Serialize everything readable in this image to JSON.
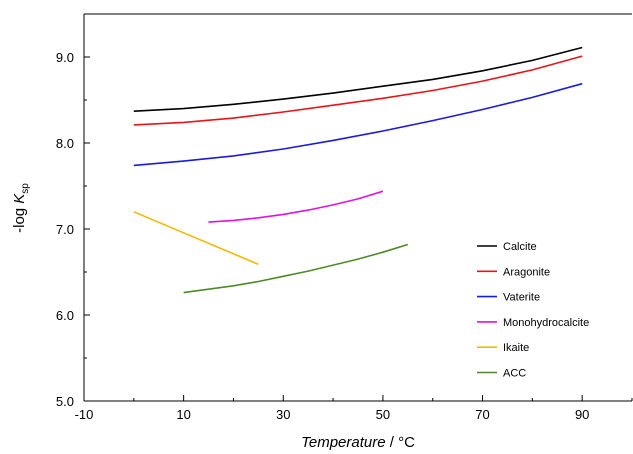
{
  "chart_data": {
    "type": "line",
    "xlabel": "Temperature / °C",
    "xlabel_parts": {
      "variable": "Temperature",
      "unit": " / °C"
    },
    "ylabel_parts": {
      "prefix": "-log ",
      "variable": "K",
      "subscript": "sp"
    },
    "xlim": [
      -10,
      100
    ],
    "ylim": [
      5.0,
      9.5
    ],
    "xticks": [
      -10,
      10,
      30,
      50,
      70,
      90
    ],
    "xtick_labels": [
      "-10",
      "10",
      "30",
      "50",
      "70",
      "90"
    ],
    "yticks": [
      5.0,
      6.0,
      7.0,
      8.0,
      9.0
    ],
    "ytick_labels": [
      "5.0",
      "6.0",
      "7.0",
      "8.0",
      "9.0"
    ],
    "grid": false,
    "legend_position": "lower-right",
    "series": [
      {
        "name": "Calcite",
        "color": "#000000",
        "x": [
          0,
          10,
          20,
          30,
          40,
          50,
          60,
          70,
          80,
          90
        ],
        "y": [
          8.37,
          8.4,
          8.45,
          8.51,
          8.58,
          8.66,
          8.74,
          8.84,
          8.96,
          9.11
        ]
      },
      {
        "name": "Aragonite",
        "color": "#e8141b",
        "x": [
          0,
          10,
          20,
          30,
          40,
          50,
          60,
          70,
          80,
          90
        ],
        "y": [
          8.21,
          8.24,
          8.29,
          8.36,
          8.44,
          8.52,
          8.61,
          8.72,
          8.85,
          9.01
        ]
      },
      {
        "name": "Vaterite",
        "color": "#1b1bdc",
        "x": [
          0,
          10,
          20,
          30,
          40,
          50,
          60,
          70,
          80,
          90
        ],
        "y": [
          7.74,
          7.79,
          7.85,
          7.93,
          8.03,
          8.14,
          8.26,
          8.39,
          8.53,
          8.69
        ]
      },
      {
        "name": "Monohydrocalcite",
        "color": "#e012e0",
        "x": [
          15,
          20,
          25,
          30,
          35,
          40,
          45,
          50
        ],
        "y": [
          7.08,
          7.1,
          7.13,
          7.17,
          7.22,
          7.28,
          7.35,
          7.44
        ]
      },
      {
        "name": "Ikaite",
        "color": "#f5b800",
        "x": [
          0,
          25
        ],
        "y": [
          7.2,
          6.59
        ]
      },
      {
        "name": "ACC",
        "color": "#4f8a2a",
        "x": [
          10,
          15,
          20,
          25,
          30,
          35,
          40,
          45,
          50,
          55
        ],
        "y": [
          6.26,
          6.3,
          6.34,
          6.39,
          6.45,
          6.51,
          6.58,
          6.65,
          6.73,
          6.82
        ]
      }
    ]
  }
}
